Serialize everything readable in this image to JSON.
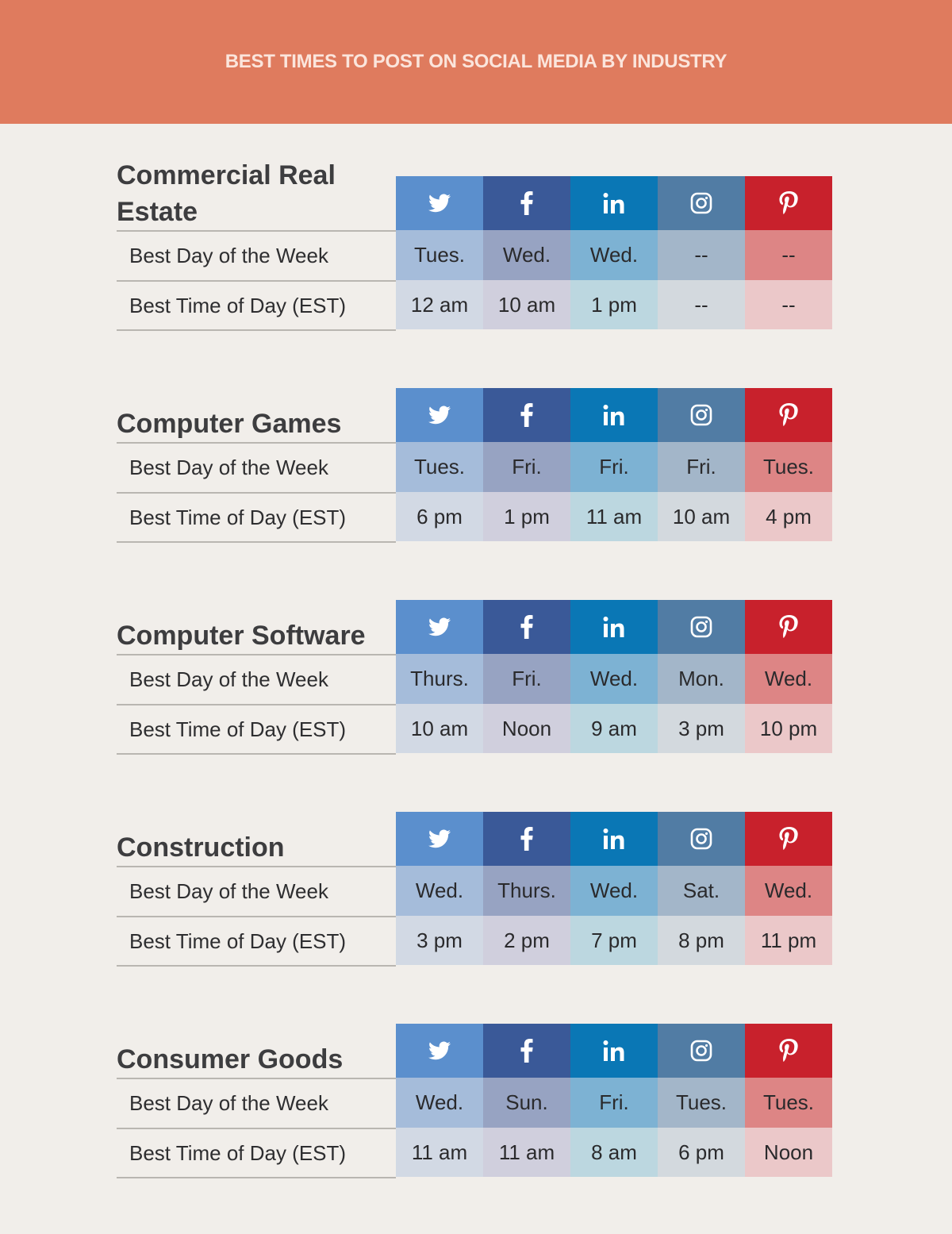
{
  "header": {
    "title": "BEST TIMES TO POST ON SOCIAL MEDIA BY INDUSTRY"
  },
  "platforms": [
    {
      "icon": "twitter-icon",
      "color": "#5b8fcd",
      "day_color": "#a5bcda",
      "time_color": "#d2d9e4"
    },
    {
      "icon": "facebook-icon",
      "color": "#3a5998",
      "day_color": "#97a3c2",
      "time_color": "#d0cfdd"
    },
    {
      "icon": "linkedin-icon",
      "color": "#0a77b5",
      "day_color": "#7db2d3",
      "time_color": "#bcd7e0"
    },
    {
      "icon": "instagram-icon",
      "color": "#517ca4",
      "day_color": "#a3b6c9",
      "time_color": "#d3d9de"
    },
    {
      "icon": "pinterest-icon",
      "color": "#c8212c",
      "day_color": "#dd8585",
      "time_color": "#ebc8c9"
    }
  ],
  "row_labels": {
    "day": "Best Day of the Week",
    "time": "Best Time of Day (EST)"
  },
  "sections": [
    {
      "title": "Commercial Real Estate",
      "days": [
        "Tues.",
        "Wed.",
        "Wed.",
        "--",
        "--"
      ],
      "times": [
        "12 am",
        "10 am",
        "1 pm",
        "--",
        "--"
      ]
    },
    {
      "title": "Computer Games",
      "days": [
        "Tues.",
        "Fri.",
        "Fri.",
        "Fri.",
        "Tues."
      ],
      "times": [
        "6 pm",
        "1 pm",
        "11 am",
        "10 am",
        "4 pm"
      ]
    },
    {
      "title": "Computer Software",
      "days": [
        "Thurs.",
        "Fri.",
        "Wed.",
        "Mon.",
        "Wed."
      ],
      "times": [
        "10 am",
        "Noon",
        "9 am",
        "3 pm",
        "10 pm"
      ]
    },
    {
      "title": "Construction",
      "days": [
        "Wed.",
        "Thurs.",
        "Wed.",
        "Sat.",
        "Wed."
      ],
      "times": [
        "3 pm",
        "2 pm",
        "7 pm",
        "8 pm",
        "11 pm"
      ]
    },
    {
      "title": "Consumer Goods",
      "days": [
        "Wed.",
        "Sun.",
        "Fri.",
        "Tues.",
        "Tues."
      ],
      "times": [
        "11 am",
        "11 am",
        "8 am",
        "6 pm",
        "Noon"
      ]
    }
  ]
}
